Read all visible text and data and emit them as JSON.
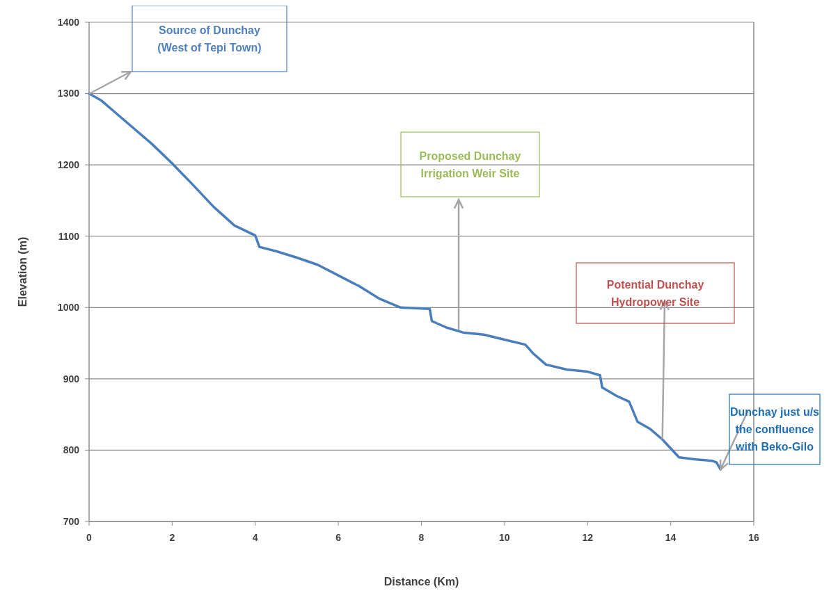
{
  "chart_data": {
    "type": "line",
    "xlabel": "Distance (Km)",
    "ylabel": "Elevation (m)",
    "xlim": [
      0,
      16
    ],
    "xticks": [
      0,
      2,
      4,
      6,
      8,
      10,
      12,
      14,
      16
    ],
    "ylim": [
      700,
      1400
    ],
    "yticks": [
      700,
      800,
      900,
      1000,
      1100,
      1200,
      1300,
      1400
    ],
    "grid": "y",
    "marker": "none",
    "line_style": "solid",
    "series": [
      {
        "color": "#4a7ebb",
        "x": [
          0,
          0.3,
          0.6,
          1,
          1.5,
          2,
          2.5,
          3,
          3.5,
          4,
          4.1,
          4.5,
          5,
          5.5,
          6,
          6.5,
          7,
          7.5,
          8.2,
          8.25,
          8.6,
          9,
          9.5,
          10,
          10.5,
          10.7,
          11,
          11.5,
          12,
          12.3,
          12.35,
          12.7,
          13,
          13.2,
          13.5,
          13.8,
          14.2,
          14.6,
          15,
          15.1,
          15.2
        ],
        "values": [
          1300,
          1290,
          1275,
          1255,
          1230,
          1202,
          1172,
          1141,
          1115,
          1101,
          1085,
          1079,
          1070,
          1060,
          1045,
          1030,
          1012,
          1000,
          998,
          981,
          972,
          965,
          962,
          955,
          948,
          935,
          920,
          913,
          910,
          905,
          888,
          876,
          868,
          840,
          830,
          815,
          790,
          787,
          785,
          783,
          773
        ]
      }
    ],
    "annotations": [
      "Source of Dunchay\n(West of Tepi Town)",
      "Proposed Dunchay\nIrrigation Weir Site",
      {
        "text": "Potential Dunchay\nHydropower Site",
        "x": 13.8,
        "y": 815
      },
      {
        "text": "Dunchay just u/s\nthe confluence\nwith Beko-Gilo",
        "x": 15.2,
        "y": 773
      }
    ]
  }
}
